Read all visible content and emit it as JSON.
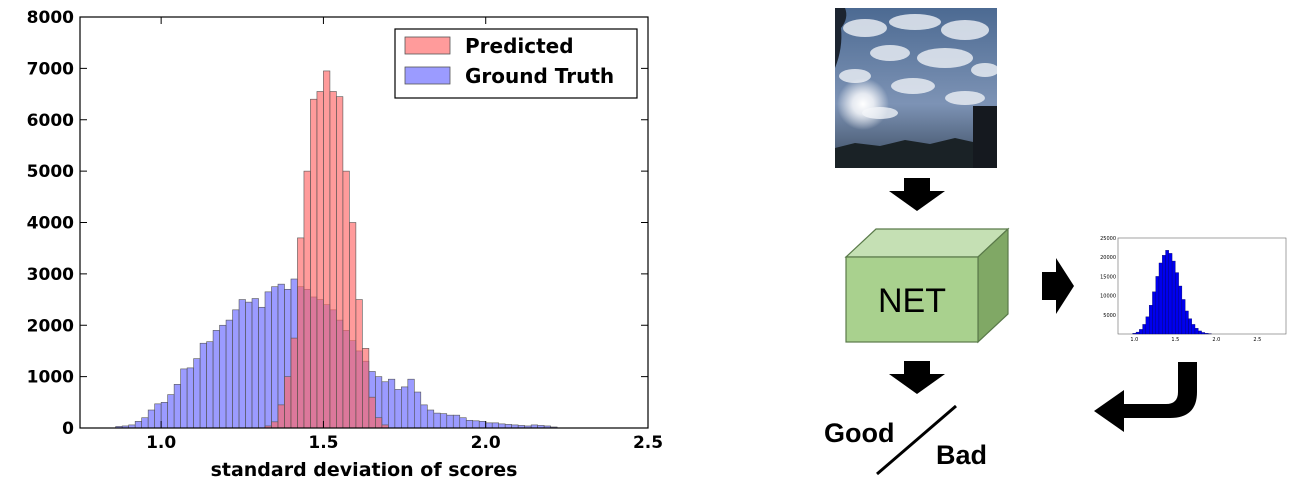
{
  "chart_data": {
    "type": "bar",
    "xlabel": "standard deviation of scores",
    "ylabel": "",
    "xlim": [
      0.75,
      2.5
    ],
    "ylim": [
      0,
      8000
    ],
    "x_ticks": [
      "1.0",
      "1.5",
      "2.0",
      "2.5"
    ],
    "x_tick_values": [
      1.0,
      1.5,
      2.0,
      2.5
    ],
    "y_ticks": [
      "0",
      "1000",
      "2000",
      "3000",
      "4000",
      "5000",
      "6000",
      "7000",
      "8000"
    ],
    "y_tick_values": [
      0,
      1000,
      2000,
      3000,
      4000,
      5000,
      6000,
      7000,
      8000
    ],
    "legend_position": "top-right",
    "grid": false,
    "series": [
      {
        "name": "Predicted",
        "color": "#ff6666",
        "bins": [
          {
            "x": 1.33,
            "y": 40
          },
          {
            "x": 1.35,
            "y": 120
          },
          {
            "x": 1.37,
            "y": 450
          },
          {
            "x": 1.39,
            "y": 1000
          },
          {
            "x": 1.41,
            "y": 1750
          },
          {
            "x": 1.43,
            "y": 3700
          },
          {
            "x": 1.45,
            "y": 5000
          },
          {
            "x": 1.47,
            "y": 6400
          },
          {
            "x": 1.49,
            "y": 6550
          },
          {
            "x": 1.51,
            "y": 6950
          },
          {
            "x": 1.53,
            "y": 6550
          },
          {
            "x": 1.55,
            "y": 6450
          },
          {
            "x": 1.57,
            "y": 5000
          },
          {
            "x": 1.59,
            "y": 4000
          },
          {
            "x": 1.61,
            "y": 2500
          },
          {
            "x": 1.63,
            "y": 1550
          },
          {
            "x": 1.65,
            "y": 600
          },
          {
            "x": 1.67,
            "y": 200
          },
          {
            "x": 1.69,
            "y": 60
          }
        ]
      },
      {
        "name": "Ground Truth",
        "color": "#6666ff",
        "bins": [
          {
            "x": 0.87,
            "y": 30
          },
          {
            "x": 0.89,
            "y": 40
          },
          {
            "x": 0.91,
            "y": 60
          },
          {
            "x": 0.93,
            "y": 130
          },
          {
            "x": 0.95,
            "y": 200
          },
          {
            "x": 0.97,
            "y": 350
          },
          {
            "x": 0.99,
            "y": 470
          },
          {
            "x": 1.01,
            "y": 500
          },
          {
            "x": 1.03,
            "y": 650
          },
          {
            "x": 1.05,
            "y": 850
          },
          {
            "x": 1.07,
            "y": 1150
          },
          {
            "x": 1.09,
            "y": 1170
          },
          {
            "x": 1.11,
            "y": 1350
          },
          {
            "x": 1.13,
            "y": 1650
          },
          {
            "x": 1.15,
            "y": 1680
          },
          {
            "x": 1.17,
            "y": 1900
          },
          {
            "x": 1.19,
            "y": 2000
          },
          {
            "x": 1.21,
            "y": 2100
          },
          {
            "x": 1.23,
            "y": 2300
          },
          {
            "x": 1.25,
            "y": 2500
          },
          {
            "x": 1.27,
            "y": 2450
          },
          {
            "x": 1.29,
            "y": 2520
          },
          {
            "x": 1.31,
            "y": 2350
          },
          {
            "x": 1.33,
            "y": 2650
          },
          {
            "x": 1.35,
            "y": 2750
          },
          {
            "x": 1.37,
            "y": 2800
          },
          {
            "x": 1.39,
            "y": 2700
          },
          {
            "x": 1.41,
            "y": 2900
          },
          {
            "x": 1.43,
            "y": 2750
          },
          {
            "x": 1.45,
            "y": 2700
          },
          {
            "x": 1.47,
            "y": 2550
          },
          {
            "x": 1.49,
            "y": 2500
          },
          {
            "x": 1.51,
            "y": 2400
          },
          {
            "x": 1.53,
            "y": 2300
          },
          {
            "x": 1.55,
            "y": 2100
          },
          {
            "x": 1.57,
            "y": 1900
          },
          {
            "x": 1.59,
            "y": 1700
          },
          {
            "x": 1.61,
            "y": 1500
          },
          {
            "x": 1.63,
            "y": 1300
          },
          {
            "x": 1.65,
            "y": 1100
          },
          {
            "x": 1.67,
            "y": 1000
          },
          {
            "x": 1.69,
            "y": 900
          },
          {
            "x": 1.71,
            "y": 950
          },
          {
            "x": 1.73,
            "y": 750
          },
          {
            "x": 1.75,
            "y": 800
          },
          {
            "x": 1.77,
            "y": 950
          },
          {
            "x": 1.79,
            "y": 700
          },
          {
            "x": 1.81,
            "y": 450
          },
          {
            "x": 1.83,
            "y": 350
          },
          {
            "x": 1.85,
            "y": 290
          },
          {
            "x": 1.87,
            "y": 280
          },
          {
            "x": 1.89,
            "y": 250
          },
          {
            "x": 1.91,
            "y": 250
          },
          {
            "x": 1.93,
            "y": 200
          },
          {
            "x": 1.95,
            "y": 150
          },
          {
            "x": 1.97,
            "y": 140
          },
          {
            "x": 1.99,
            "y": 130
          },
          {
            "x": 2.01,
            "y": 100
          },
          {
            "x": 2.03,
            "y": 100
          },
          {
            "x": 2.05,
            "y": 80
          },
          {
            "x": 2.07,
            "y": 70
          },
          {
            "x": 2.09,
            "y": 60
          },
          {
            "x": 2.11,
            "y": 50
          },
          {
            "x": 2.13,
            "y": 40
          },
          {
            "x": 2.15,
            "y": 60
          },
          {
            "x": 2.17,
            "y": 50
          },
          {
            "x": 2.19,
            "y": 40
          },
          {
            "x": 2.21,
            "y": 20
          }
        ]
      }
    ],
    "bin_width": 0.02
  },
  "mini_chart": {
    "type": "bar",
    "color": "#0000ee",
    "xlim": [
      0.8,
      2.85
    ],
    "ylim": [
      0,
      25000
    ],
    "x_ticks": [
      "1.0",
      "1.5",
      "2.0",
      "2.5"
    ],
    "x_tick_values": [
      1.0,
      1.5,
      2.0,
      2.5
    ],
    "y_ticks": [
      "25000",
      "20000",
      "15000",
      "10000",
      "5000"
    ],
    "y_tick_values": [
      25000,
      20000,
      15000,
      10000,
      5000
    ],
    "bin_width": 0.04,
    "bins": [
      {
        "x": 1.0,
        "y": 200
      },
      {
        "x": 1.04,
        "y": 500
      },
      {
        "x": 1.08,
        "y": 1200
      },
      {
        "x": 1.12,
        "y": 2500
      },
      {
        "x": 1.16,
        "y": 4500
      },
      {
        "x": 1.2,
        "y": 7500
      },
      {
        "x": 1.24,
        "y": 11000
      },
      {
        "x": 1.28,
        "y": 15000
      },
      {
        "x": 1.32,
        "y": 18500
      },
      {
        "x": 1.36,
        "y": 20500
      },
      {
        "x": 1.4,
        "y": 21800
      },
      {
        "x": 1.44,
        "y": 21000
      },
      {
        "x": 1.48,
        "y": 19000
      },
      {
        "x": 1.52,
        "y": 16000
      },
      {
        "x": 1.56,
        "y": 12500
      },
      {
        "x": 1.6,
        "y": 9000
      },
      {
        "x": 1.64,
        "y": 6000
      },
      {
        "x": 1.68,
        "y": 4000
      },
      {
        "x": 1.72,
        "y": 2500
      },
      {
        "x": 1.76,
        "y": 1500
      },
      {
        "x": 1.8,
        "y": 800
      },
      {
        "x": 1.84,
        "y": 400
      },
      {
        "x": 1.88,
        "y": 200
      },
      {
        "x": 1.92,
        "y": 100
      }
    ]
  },
  "diagram": {
    "net_label": "NET",
    "good_label": "Good",
    "bad_label": "Bad"
  },
  "colors": {
    "predicted": "#ff6666",
    "ground_truth": "#6666ff",
    "cube_front": "#a9d18e",
    "cube_top": "#c5e0b4",
    "cube_side": "#80a865",
    "mini_bars": "#0000ee"
  },
  "icons": [
    "down-arrow-icon",
    "right-arrow-icon",
    "return-arrow-icon"
  ]
}
